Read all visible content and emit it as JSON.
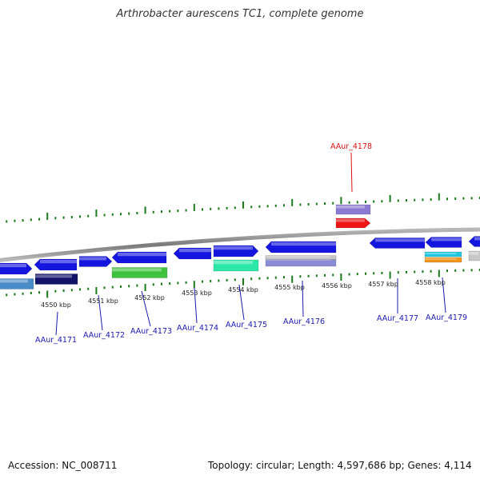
{
  "title": "Arthrobacter aurescens TC1, complete genome",
  "footer": {
    "accession": "Accession: NC_008711",
    "stats": "Topology: circular; Length: 4,597,686 bp; Genes: 4,114"
  },
  "colors": {
    "tick": "#1a7a1a",
    "backbone": "#8a8a8a",
    "gene_forward": "#1515e0",
    "gene_label": "#1a1ab0",
    "highlight_label": "#dd1111"
  },
  "kbp_labels": [
    "4550 kbp",
    "4551 kbp",
    "4552 kbp",
    "4553 kbp",
    "4554 kbp",
    "4555 kbp",
    "4556 kbp",
    "4557 kbp",
    "4558 kbp"
  ],
  "gene_labels": [
    {
      "id": "AAur_4171",
      "color": "#1a1ab0"
    },
    {
      "id": "AAur_4172",
      "color": "#1a1ab0"
    },
    {
      "id": "AAur_4173",
      "color": "#1a1ab0"
    },
    {
      "id": "AAur_4174",
      "color": "#1a1ab0"
    },
    {
      "id": "AAur_4175",
      "color": "#1a1ab0"
    },
    {
      "id": "AAur_4176",
      "color": "#1a1ab0"
    },
    {
      "id": "AAur_4177",
      "color": "#1a1ab0"
    },
    {
      "id": "AAur_4179",
      "color": "#1a1ab0"
    },
    {
      "id": "AAur_4178",
      "color": "#dd1111"
    }
  ]
}
